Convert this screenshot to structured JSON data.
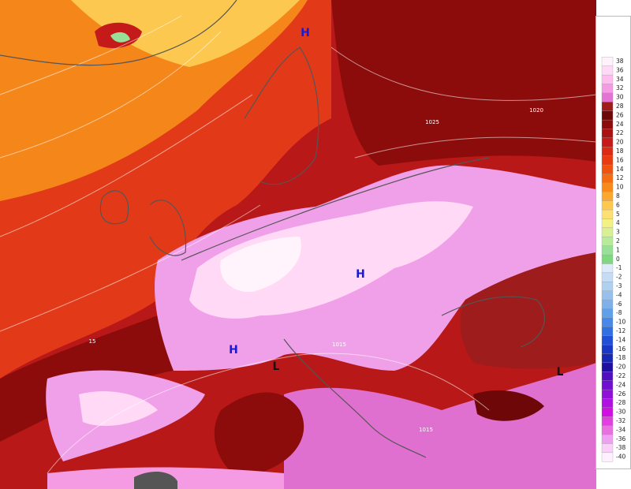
{
  "map": {
    "pressure_centers": [
      "H",
      "H",
      "H",
      "L",
      "L"
    ],
    "isobar_labels": [
      "1025",
      "1020",
      "1015",
      "1015",
      "15"
    ],
    "legend": {
      "entries": [
        {
          "label": "38",
          "color": "#fff2fb"
        },
        {
          "label": "36",
          "color": "#ffdaf6"
        },
        {
          "label": "34",
          "color": "#ffbdef"
        },
        {
          "label": "32",
          "color": "#f59be4"
        },
        {
          "label": "30",
          "color": "#e374d3"
        },
        {
          "label": "28",
          "color": "#9e1c1c"
        },
        {
          "label": "26",
          "color": "#6e0808"
        },
        {
          "label": "24",
          "color": "#8c0c0c"
        },
        {
          "label": "22",
          "color": "#a81212"
        },
        {
          "label": "20",
          "color": "#c41a1a"
        },
        {
          "label": "18",
          "color": "#dc2a14"
        },
        {
          "label": "16",
          "color": "#e83c10"
        },
        {
          "label": "14",
          "color": "#f05210"
        },
        {
          "label": "12",
          "color": "#f56c12"
        },
        {
          "label": "10",
          "color": "#f88a1a"
        },
        {
          "label": "8",
          "color": "#fba830"
        },
        {
          "label": "6",
          "color": "#fcc850"
        },
        {
          "label": "5",
          "color": "#fde072"
        },
        {
          "label": "4",
          "color": "#f2f284"
        },
        {
          "label": "3",
          "color": "#d8f092"
        },
        {
          "label": "2",
          "color": "#b8eb98"
        },
        {
          "label": "1",
          "color": "#98e098"
        },
        {
          "label": "0",
          "color": "#7fd87f"
        },
        {
          "label": "-1",
          "color": "#dceafa"
        },
        {
          "label": "-2",
          "color": "#c6dcf4"
        },
        {
          "label": "-3",
          "color": "#b0d0f0"
        },
        {
          "label": "-4",
          "color": "#98c0ec"
        },
        {
          "label": "-6",
          "color": "#80b0e8"
        },
        {
          "label": "-8",
          "color": "#60a0e8"
        },
        {
          "label": "-10",
          "color": "#4888e8"
        },
        {
          "label": "-12",
          "color": "#3070e0"
        },
        {
          "label": "-14",
          "color": "#2050d8"
        },
        {
          "label": "-16",
          "color": "#1838c8"
        },
        {
          "label": "-18",
          "color": "#1828b0"
        },
        {
          "label": "-20",
          "color": "#2010a0"
        },
        {
          "label": "-22",
          "color": "#5010c0"
        },
        {
          "label": "-24",
          "color": "#7010d0"
        },
        {
          "label": "-26",
          "color": "#9010d8"
        },
        {
          "label": "-28",
          "color": "#b010e0"
        },
        {
          "label": "-30",
          "color": "#d010e0"
        },
        {
          "label": "-32",
          "color": "#e040e0"
        },
        {
          "label": "-34",
          "color": "#e870e0"
        },
        {
          "label": "-36",
          "color": "#f0a0f0"
        },
        {
          "label": "-38",
          "color": "#f8d0f8"
        },
        {
          "label": "-40",
          "color": "#fff0ff"
        }
      ]
    }
  }
}
